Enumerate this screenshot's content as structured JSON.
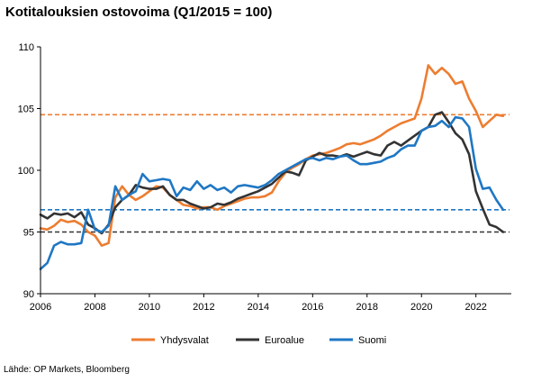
{
  "chart_data": {
    "type": "line",
    "title": "Kotitalouksien ostovoima (Q1/2015 = 100)",
    "source": "Lähde: OP Markets, Bloomberg",
    "xlim": [
      2006,
      2023.3
    ],
    "ylim": [
      90,
      110
    ],
    "x_ticks": [
      2006,
      2008,
      2010,
      2012,
      2014,
      2016,
      2018,
      2020,
      2022
    ],
    "y_ticks": [
      90,
      95,
      100,
      105,
      110
    ],
    "grid": false,
    "legend_position": "bottom",
    "reference_lines": [
      {
        "value": 104.5,
        "color": "#ed7d31",
        "style": "dashed"
      },
      {
        "value": 96.8,
        "color": "#1f77c4",
        "style": "dashed"
      },
      {
        "value": 95.0,
        "color": "#333333",
        "style": "dashed"
      }
    ],
    "series": [
      {
        "name": "Yhdysvalat",
        "color": "#ed7d31",
        "x": [
          2006.0,
          2006.25,
          2006.5,
          2006.75,
          2007.0,
          2007.25,
          2007.5,
          2007.75,
          2008.0,
          2008.25,
          2008.5,
          2008.75,
          2009.0,
          2009.25,
          2009.5,
          2009.75,
          2010.0,
          2010.25,
          2010.5,
          2010.75,
          2011.0,
          2011.25,
          2011.5,
          2011.75,
          2012.0,
          2012.25,
          2012.5,
          2012.75,
          2013.0,
          2013.25,
          2013.5,
          2013.75,
          2014.0,
          2014.25,
          2014.5,
          2014.75,
          2015.0,
          2015.25,
          2015.5,
          2015.75,
          2016.0,
          2016.25,
          2016.5,
          2016.75,
          2017.0,
          2017.25,
          2017.5,
          2017.75,
          2018.0,
          2018.25,
          2018.5,
          2018.75,
          2019.0,
          2019.25,
          2019.5,
          2019.75,
          2020.0,
          2020.25,
          2020.5,
          2020.75,
          2021.0,
          2021.25,
          2021.5,
          2021.75,
          2022.0,
          2022.25,
          2022.5,
          2022.75,
          2023.0
        ],
        "values": [
          95.3,
          95.2,
          95.5,
          96.0,
          95.8,
          95.9,
          95.6,
          95.0,
          94.7,
          93.9,
          94.1,
          97.8,
          98.7,
          98.0,
          97.6,
          97.9,
          98.3,
          98.7,
          98.6,
          98.0,
          97.6,
          97.2,
          97.1,
          96.9,
          97.0,
          97.0,
          96.8,
          97.1,
          97.3,
          97.5,
          97.7,
          97.8,
          97.8,
          97.9,
          98.2,
          99.1,
          99.8,
          100.2,
          100.5,
          100.9,
          101.2,
          101.3,
          101.4,
          101.6,
          101.8,
          102.1,
          102.2,
          102.1,
          102.3,
          102.5,
          102.8,
          103.2,
          103.5,
          103.8,
          104.0,
          104.2,
          105.8,
          108.5,
          107.8,
          108.3,
          107.8,
          107.0,
          107.2,
          105.8,
          104.8,
          103.5,
          104.0,
          104.5,
          104.4
        ]
      },
      {
        "name": "Euroalue",
        "color": "#333333",
        "x": [
          2006.0,
          2006.25,
          2006.5,
          2006.75,
          2007.0,
          2007.25,
          2007.5,
          2007.75,
          2008.0,
          2008.25,
          2008.5,
          2008.75,
          2009.0,
          2009.25,
          2009.5,
          2009.75,
          2010.0,
          2010.25,
          2010.5,
          2010.75,
          2011.0,
          2011.25,
          2011.5,
          2011.75,
          2012.0,
          2012.25,
          2012.5,
          2012.75,
          2013.0,
          2013.25,
          2013.5,
          2013.75,
          2014.0,
          2014.25,
          2014.5,
          2014.75,
          2015.0,
          2015.25,
          2015.5,
          2015.75,
          2016.0,
          2016.25,
          2016.5,
          2016.75,
          2017.0,
          2017.25,
          2017.5,
          2017.75,
          2018.0,
          2018.25,
          2018.5,
          2018.75,
          2019.0,
          2019.25,
          2019.5,
          2019.75,
          2020.0,
          2020.25,
          2020.5,
          2020.75,
          2021.0,
          2021.25,
          2021.5,
          2021.75,
          2022.0,
          2022.25,
          2022.5,
          2022.75,
          2023.0
        ],
        "values": [
          96.4,
          96.1,
          96.5,
          96.4,
          96.5,
          96.2,
          96.6,
          95.6,
          95.3,
          94.9,
          95.6,
          97.0,
          97.6,
          98.0,
          98.8,
          98.6,
          98.5,
          98.5,
          98.7,
          98.0,
          97.6,
          97.6,
          97.3,
          97.1,
          96.9,
          97.0,
          97.3,
          97.2,
          97.4,
          97.7,
          97.9,
          98.1,
          98.3,
          98.6,
          98.9,
          99.4,
          99.9,
          99.8,
          99.6,
          100.8,
          101.1,
          101.4,
          101.2,
          101.2,
          101.1,
          101.3,
          101.1,
          101.3,
          101.5,
          101.3,
          101.2,
          102.0,
          102.3,
          102.0,
          102.4,
          102.8,
          103.2,
          103.5,
          104.5,
          104.7,
          103.9,
          103.0,
          102.5,
          101.3,
          98.3,
          96.9,
          95.6,
          95.4,
          95.0
        ]
      },
      {
        "name": "Suomi",
        "color": "#1f77c4",
        "x": [
          2006.0,
          2006.25,
          2006.5,
          2006.75,
          2007.0,
          2007.25,
          2007.5,
          2007.75,
          2008.0,
          2008.25,
          2008.5,
          2008.75,
          2009.0,
          2009.25,
          2009.5,
          2009.75,
          2010.0,
          2010.25,
          2010.5,
          2010.75,
          2011.0,
          2011.25,
          2011.5,
          2011.75,
          2012.0,
          2012.25,
          2012.5,
          2012.75,
          2013.0,
          2013.25,
          2013.5,
          2013.75,
          2014.0,
          2014.25,
          2014.5,
          2014.75,
          2015.0,
          2015.25,
          2015.5,
          2015.75,
          2016.0,
          2016.25,
          2016.5,
          2016.75,
          2017.0,
          2017.25,
          2017.5,
          2017.75,
          2018.0,
          2018.25,
          2018.5,
          2018.75,
          2019.0,
          2019.25,
          2019.5,
          2019.75,
          2020.0,
          2020.25,
          2020.5,
          2020.75,
          2021.0,
          2021.25,
          2021.5,
          2021.75,
          2022.0,
          2022.25,
          2022.5,
          2022.75,
          2023.0
        ],
        "values": [
          92.0,
          92.5,
          93.9,
          94.2,
          94.0,
          94.0,
          94.1,
          96.8,
          95.2,
          95.0,
          95.5,
          98.7,
          97.6,
          98.0,
          98.3,
          99.7,
          99.1,
          99.2,
          99.3,
          99.2,
          97.9,
          98.6,
          98.4,
          99.1,
          98.5,
          98.8,
          98.4,
          98.6,
          98.2,
          98.7,
          98.8,
          98.7,
          98.6,
          98.8,
          99.2,
          99.7,
          100.0,
          100.3,
          100.6,
          100.9,
          101.0,
          100.8,
          101.0,
          100.9,
          101.1,
          101.2,
          100.8,
          100.5,
          100.5,
          100.6,
          100.7,
          101.0,
          101.2,
          101.7,
          102.0,
          102.0,
          103.2,
          103.5,
          103.6,
          104.0,
          103.5,
          104.3,
          104.2,
          103.5,
          100.1,
          98.5,
          98.6,
          97.6,
          96.8
        ]
      }
    ]
  }
}
